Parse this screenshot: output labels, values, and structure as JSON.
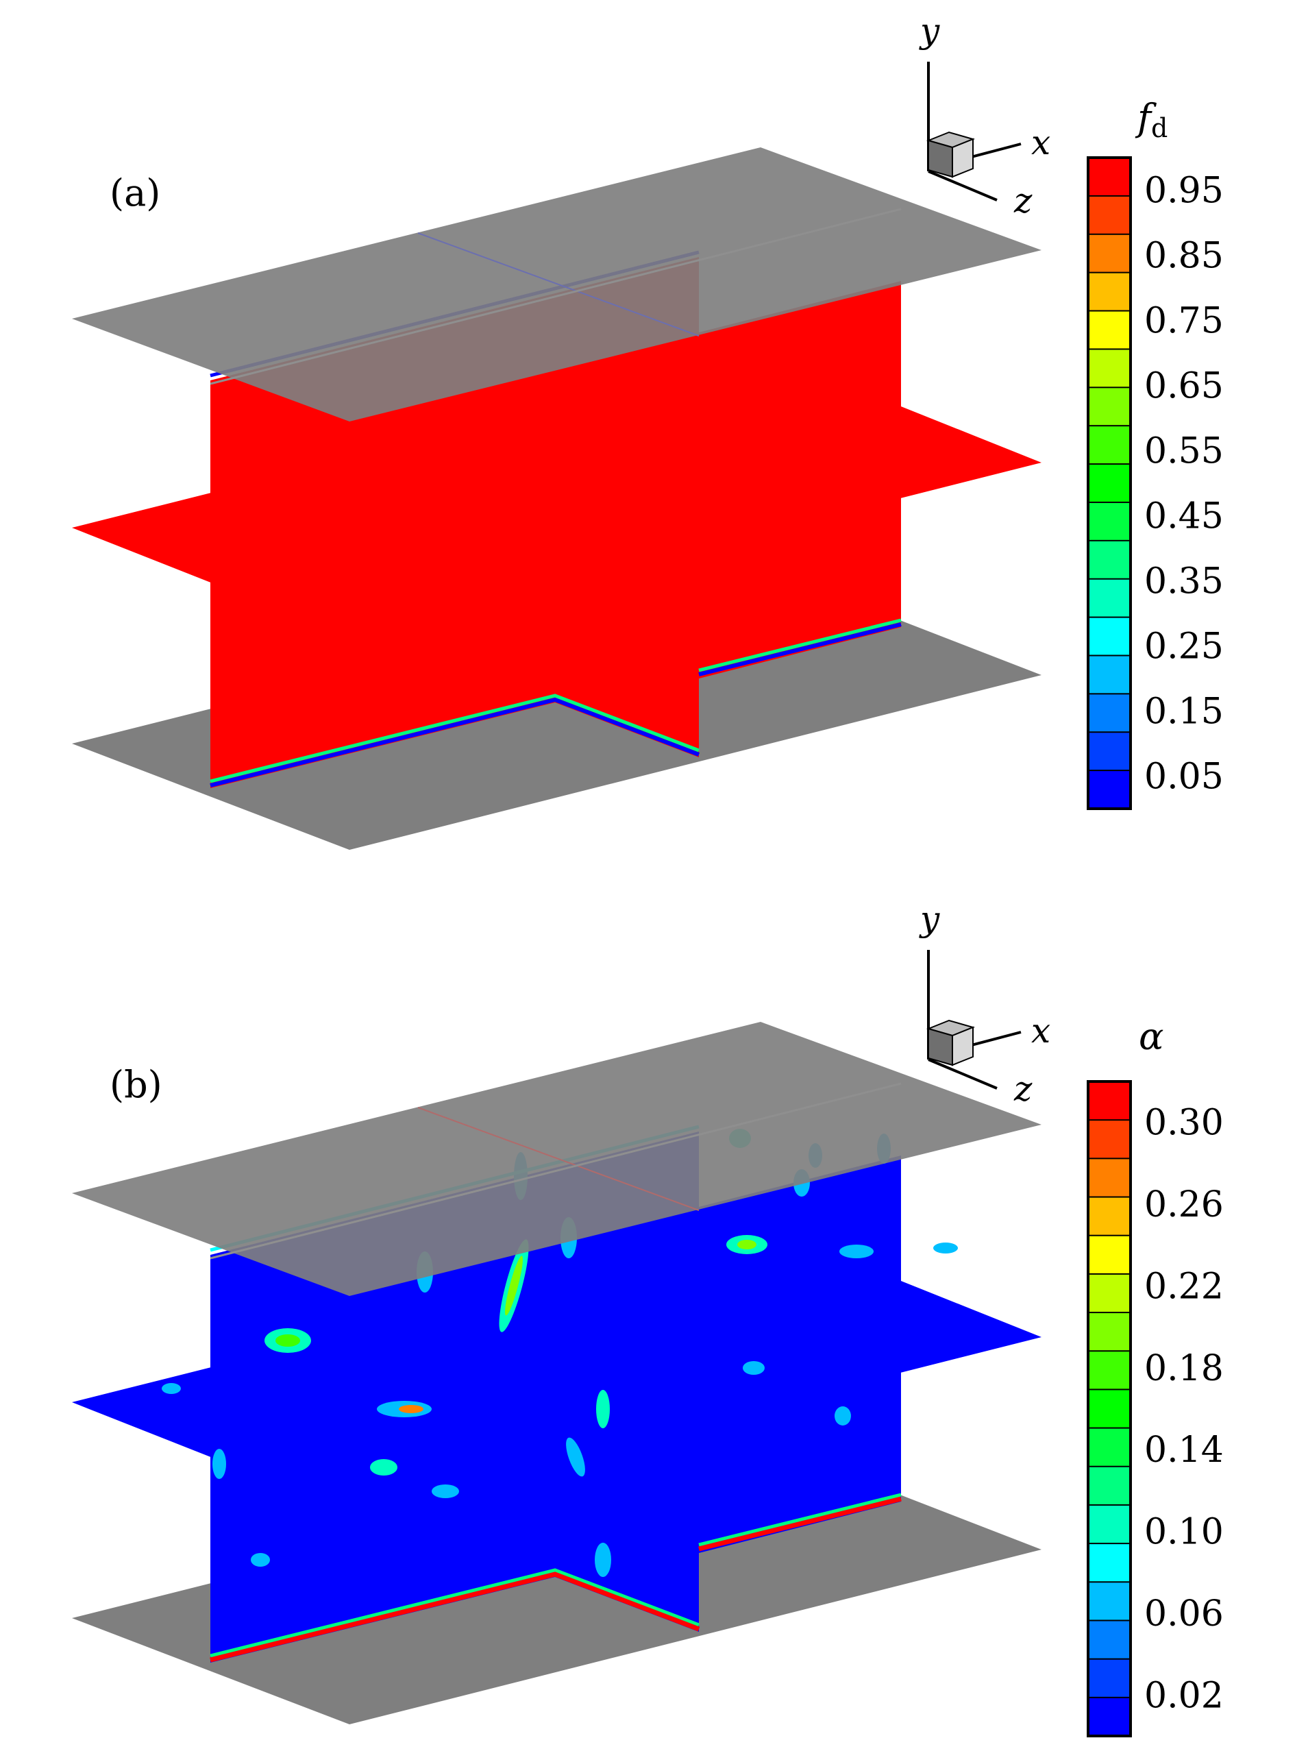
{
  "panels": [
    {
      "label": "(a)",
      "colorbar": {
        "title_main": "f",
        "title_sub": "d",
        "ticks": [
          "0.95",
          "0.85",
          "0.75",
          "0.65",
          "0.55",
          "0.45",
          "0.35",
          "0.25",
          "0.15",
          "0.05"
        ]
      },
      "axes": {
        "y": "y",
        "x": "x",
        "z": "z"
      }
    },
    {
      "label": "(b)",
      "colorbar": {
        "title_main": "α",
        "title_sub": "",
        "ticks": [
          "0.30",
          "0.26",
          "0.22",
          "0.18",
          "0.14",
          "0.10",
          "0.06",
          "0.02"
        ]
      },
      "axes": {
        "y": "y",
        "x": "x",
        "z": "z"
      }
    }
  ],
  "colormap": [
    "#0000ff",
    "#0040ff",
    "#0080ff",
    "#00bfff",
    "#00ffff",
    "#00ffbf",
    "#00ff80",
    "#00ff40",
    "#00ff00",
    "#40ff00",
    "#80ff00",
    "#bfff00",
    "#ffff00",
    "#ffbf00",
    "#ff8000",
    "#ff4000",
    "#ff0000"
  ],
  "colors": {
    "plate": "#7f7f7f",
    "field_a": "#ff0000",
    "field_b": "#0000ff"
  }
}
